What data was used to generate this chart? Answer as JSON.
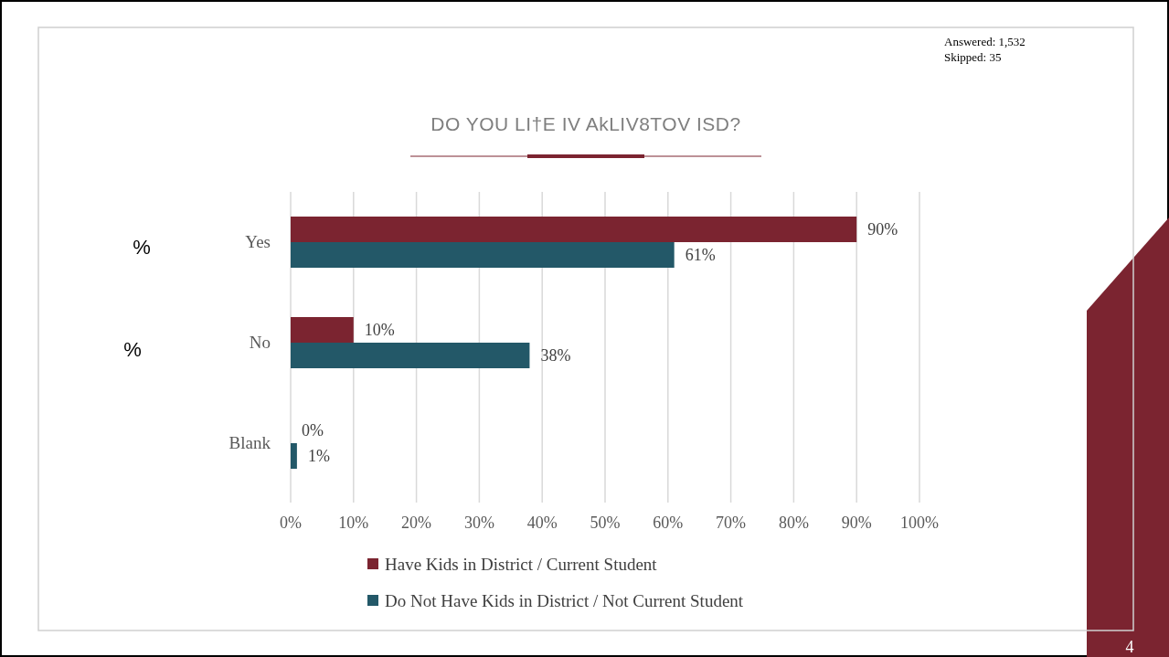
{
  "chart_data": {
    "type": "bar",
    "orientation": "horizontal",
    "title": "DO YOU LI†E IV AkLIV8TOV ISD?",
    "categories": [
      "Yes",
      "No",
      "Blank"
    ],
    "series": [
      {
        "name": "Have Kids in District / Current Student",
        "color": "#7b2430",
        "values": [
          90,
          10,
          0
        ],
        "value_labels": [
          "90%",
          "10%",
          "0%"
        ]
      },
      {
        "name": "Do Not Have Kids in District / Not Current Student",
        "color": "#235868",
        "values": [
          61,
          38,
          1
        ],
        "value_labels": [
          "61%",
          "38%",
          "1%"
        ]
      }
    ],
    "xlim": [
      0,
      100
    ],
    "xticks": [
      {
        "value": 0,
        "label": "0%"
      },
      {
        "value": 10,
        "label": "10%"
      },
      {
        "value": 20,
        "label": "20%"
      },
      {
        "value": 30,
        "label": "30%"
      },
      {
        "value": 40,
        "label": "40%"
      },
      {
        "value": 50,
        "label": "50%"
      },
      {
        "value": 60,
        "label": "60%"
      },
      {
        "value": 70,
        "label": "70%"
      },
      {
        "value": 80,
        "label": "80%"
      },
      {
        "value": 90,
        "label": "90%"
      },
      {
        "value": 100,
        "label": "100%"
      }
    ],
    "grid": "x",
    "legend": "bottom",
    "annotations": [
      "Answered: 1,532",
      "Skipped: 35",
      "%",
      "%",
      "4"
    ]
  }
}
